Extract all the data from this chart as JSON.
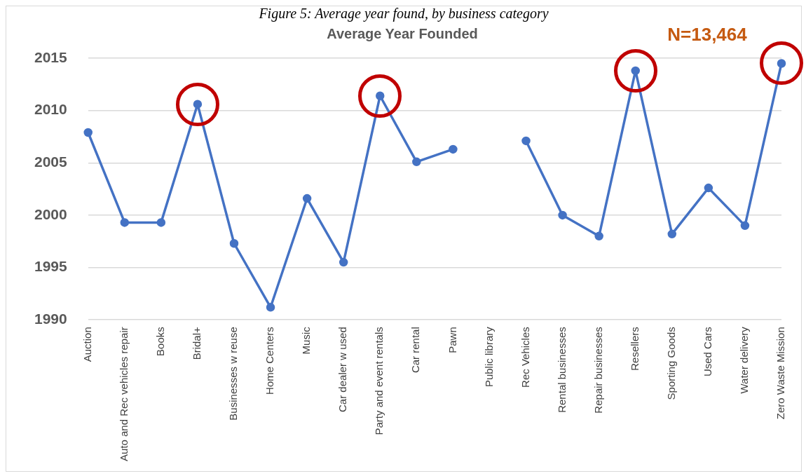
{
  "chart_data": {
    "type": "line",
    "title": "Average Year Founded",
    "annotations": [
      "Figure 5: Average year found, by business category",
      "N=13,464"
    ],
    "categories": [
      "Auction",
      "Auto and Rec vehicles repair",
      "Books",
      "Bridal+",
      "Businesses w reuse",
      "Home Centers",
      "Music",
      "Car dealer w used",
      "Party and event rentals",
      "Car rental",
      "Pawn",
      "Public library",
      "Rec Vehicles",
      "Rental businesses",
      "Repair businesses",
      "Resellers",
      "Sporting Goods",
      "Used Cars",
      "Water delivery",
      "Zero Waste Mission"
    ],
    "series": [
      {
        "color": "#4472c4",
        "values": [
          2007.9,
          1999.3,
          1999.3,
          2010.6,
          1997.3,
          1991.2,
          2001.6,
          1995.5,
          2011.4,
          2005.1,
          2006.3,
          null,
          2007.1,
          2000.0,
          1998.0,
          2013.8,
          1998.2,
          2002.6,
          1999.0,
          2014.5
        ]
      }
    ],
    "ylim": [
      1990,
      2015
    ],
    "yticks": [
      1990,
      1995,
      2000,
      2005,
      2010,
      2015
    ],
    "grid": "y",
    "legend": false,
    "marker": "circle",
    "line_style": "solid"
  }
}
